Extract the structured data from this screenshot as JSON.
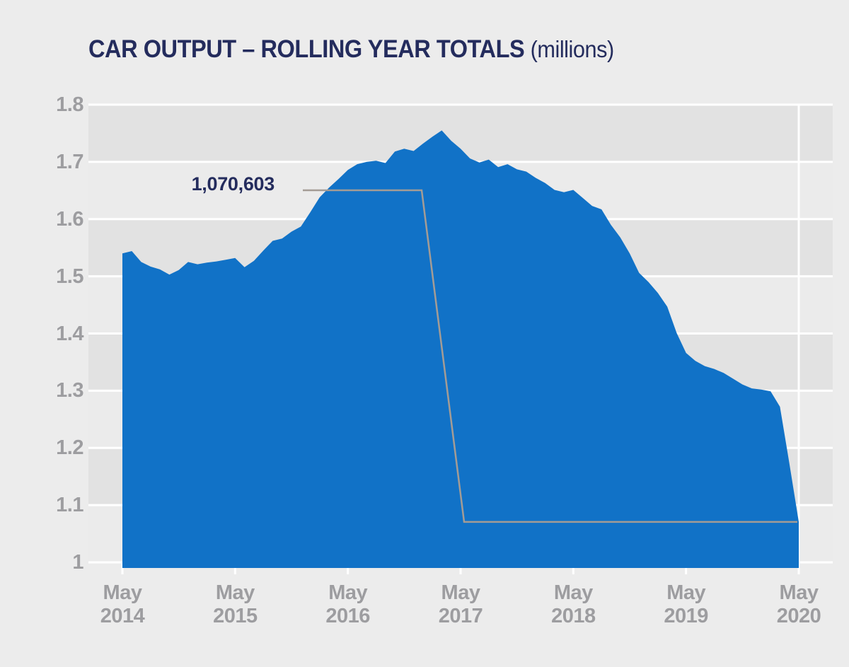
{
  "page": {
    "background": "#ececec"
  },
  "header": {
    "title": "CAR OUTPUT – ROLLING YEAR TOTALS",
    "subtitle": "(millions)"
  },
  "chart_data": {
    "type": "area",
    "title": "CAR OUTPUT – ROLLING YEAR TOTALS",
    "unit_label": "(millions)",
    "ylim": [
      1,
      1.8
    ],
    "yticks": [
      1.8,
      1.7,
      1.6,
      1.5,
      1.4,
      1.3,
      1.2,
      1.1,
      1
    ],
    "ytick_labels": [
      "1.8",
      "1.7",
      "1.6",
      "1.5",
      "1.4",
      "1.3",
      "1.2",
      "1.1",
      "1"
    ],
    "x_tick_labels": [
      [
        "May",
        "2014"
      ],
      [
        "May",
        "2015"
      ],
      [
        "May",
        "2016"
      ],
      [
        "May",
        "2017"
      ],
      [
        "May",
        "2018"
      ],
      [
        "May",
        "2019"
      ],
      [
        "May",
        "2020"
      ]
    ],
    "grid": "horizontal-bands",
    "legend": "none",
    "months": [
      "May 2014",
      "Jun 2014",
      "Jul 2014",
      "Aug 2014",
      "Sep 2014",
      "Oct 2014",
      "Nov 2014",
      "Dec 2014",
      "Jan 2015",
      "Feb 2015",
      "Mar 2015",
      "Apr 2015",
      "May 2015",
      "Jun 2015",
      "Jul 2015",
      "Aug 2015",
      "Sep 2015",
      "Oct 2015",
      "Nov 2015",
      "Dec 2015",
      "Jan 2016",
      "Feb 2016",
      "Mar 2016",
      "Apr 2016",
      "May 2016",
      "Jun 2016",
      "Jul 2016",
      "Aug 2016",
      "Sep 2016",
      "Oct 2016",
      "Nov 2016",
      "Dec 2016",
      "Jan 2017",
      "Feb 2017",
      "Mar 2017",
      "Apr 2017",
      "May 2017",
      "Jun 2017",
      "Jul 2017",
      "Aug 2017",
      "Sep 2017",
      "Oct 2017",
      "Nov 2017",
      "Dec 2017",
      "Jan 2018",
      "Feb 2018",
      "Mar 2018",
      "Apr 2018",
      "May 2018",
      "Jun 2018",
      "Jul 2018",
      "Aug 2018",
      "Sep 2018",
      "Oct 2018",
      "Nov 2018",
      "Dec 2018",
      "Jan 2019",
      "Feb 2019",
      "Mar 2019",
      "Apr 2019",
      "May 2019",
      "Jun 2019",
      "Jul 2019",
      "Aug 2019",
      "Sep 2019",
      "Oct 2019",
      "Nov 2019",
      "Dec 2019",
      "Jan 2020",
      "Feb 2020",
      "Mar 2020",
      "Apr 2020",
      "May 2020"
    ],
    "values": [
      1.54,
      1.544,
      1.525,
      1.517,
      1.512,
      1.503,
      1.511,
      1.525,
      1.521,
      1.524,
      1.526,
      1.529,
      1.532,
      1.516,
      1.527,
      1.545,
      1.562,
      1.566,
      1.578,
      1.587,
      1.612,
      1.638,
      1.655,
      1.67,
      1.686,
      1.696,
      1.7,
      1.702,
      1.698,
      1.718,
      1.723,
      1.719,
      1.732,
      1.744,
      1.755,
      1.737,
      1.723,
      1.706,
      1.699,
      1.704,
      1.691,
      1.696,
      1.687,
      1.683,
      1.672,
      1.663,
      1.651,
      1.647,
      1.651,
      1.637,
      1.623,
      1.617,
      1.59,
      1.568,
      1.54,
      1.506,
      1.49,
      1.471,
      1.447,
      1.401,
      1.366,
      1.352,
      1.343,
      1.338,
      1.331,
      1.321,
      1.311,
      1.304,
      1.302,
      1.299,
      1.272,
      1.173,
      1.0706
    ],
    "annotation": {
      "label": "1,070,603",
      "points_to": "May 2020",
      "value_millions": 1.0706
    },
    "colors": {
      "area": "#1172c7",
      "band_dark": "#e2e2e2",
      "band_light": "#ebebeb",
      "gridline": "#ffffff",
      "axis_text": "#9d9da0",
      "title_text": "#242c5d",
      "leader_line": "#a49c95"
    }
  }
}
